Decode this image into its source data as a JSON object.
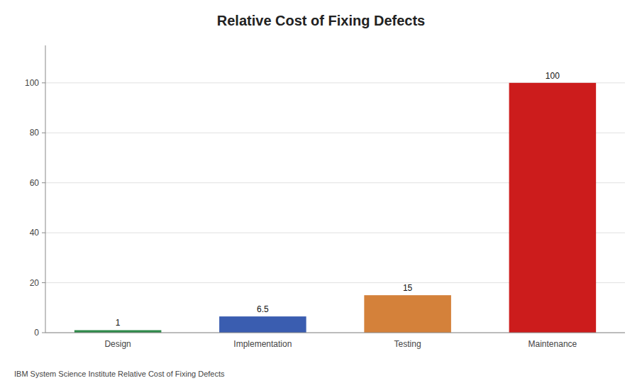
{
  "chart_data": {
    "type": "bar",
    "title": "Relative Cost of Fixing Defects",
    "categories": [
      "Design",
      "Implementation",
      "Testing",
      "Maintenance"
    ],
    "values": [
      1,
      6.5,
      15,
      100
    ],
    "colors": [
      "#2e8b4a",
      "#3a5db0",
      "#d4813a",
      "#cc1c1c"
    ],
    "ylim": [
      0,
      115
    ],
    "yticks": [
      0,
      20,
      40,
      60,
      80,
      100
    ],
    "grid": true,
    "data_labels": true,
    "annotations": [
      "IBM System Science Institute Relative Cost of Fixing Defects"
    ]
  }
}
